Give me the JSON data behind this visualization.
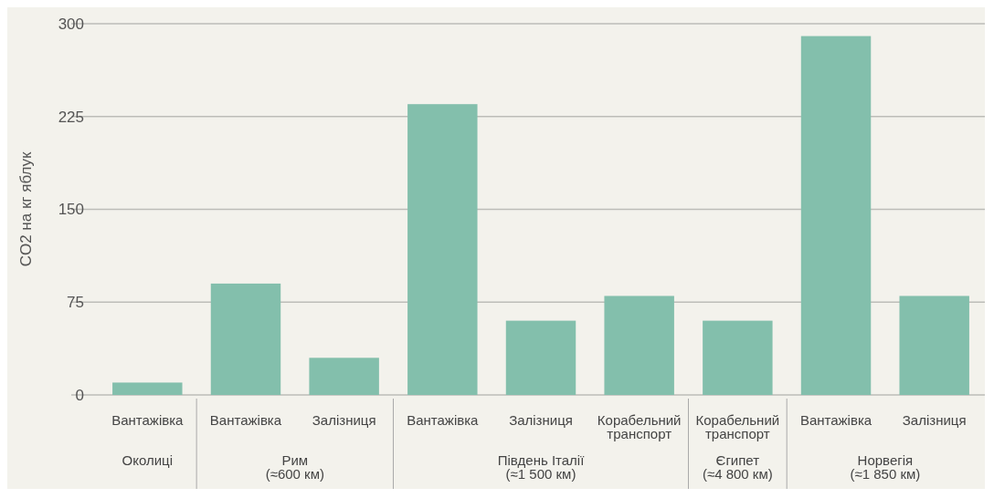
{
  "chart_data": {
    "type": "bar",
    "ylabel": "CO2 на кг яблук",
    "categories": [
      "Вантажівка",
      "Вантажівка",
      "Залізниця",
      "Вантажівка",
      "Залізниця",
      "Корабельний транспорт",
      "Корабельний транспорт",
      "Вантажівка",
      "Залізниця"
    ],
    "values": [
      10,
      90,
      30,
      235,
      60,
      80,
      60,
      290,
      80
    ],
    "color": "#83bfac",
    "ylim": [
      0,
      300
    ],
    "yticks": [
      0,
      75,
      150,
      225,
      300
    ],
    "grid": "y",
    "annotations": [
      "Околиці",
      "Рим\n(≈600 км)",
      "Південь Італії\n(≈1 500 км)",
      "Єгипет\n(≈4 800 км)",
      "Норвегія\n(≈1 850 км)"
    ]
  }
}
